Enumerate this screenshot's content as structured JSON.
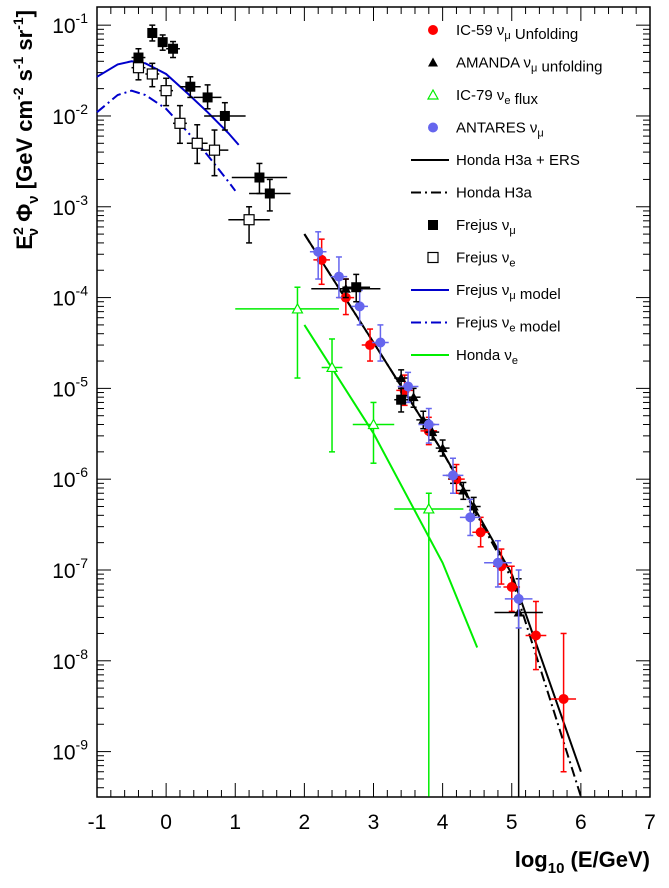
{
  "chart_data": {
    "type": "scatter",
    "xlabel": "log10 (E/GeV)",
    "ylabel": "E2ν Φν [GeV cm-2 s-1 sr-1]",
    "xlim": [
      -1,
      7
    ],
    "ylim_log10": [
      -9.5,
      -0.8
    ],
    "x_ticks": [
      "-1",
      "0",
      "1",
      "2",
      "3",
      "4",
      "5",
      "6",
      "7"
    ],
    "y_ticks": [
      {
        "exp": -9,
        "base": "10",
        "sup": "-9"
      },
      {
        "exp": -8,
        "base": "10",
        "sup": "-8"
      },
      {
        "exp": -7,
        "base": "10",
        "sup": "-7"
      },
      {
        "exp": -6,
        "base": "10",
        "sup": "-6"
      },
      {
        "exp": -5,
        "base": "10",
        "sup": "-5"
      },
      {
        "exp": -4,
        "base": "10",
        "sup": "-4"
      },
      {
        "exp": -3,
        "base": "10",
        "sup": "-3"
      },
      {
        "exp": -2,
        "base": "10",
        "sup": "-2"
      },
      {
        "exp": -1,
        "base": "10",
        "sup": "-1"
      }
    ],
    "legend_position": "top-right",
    "legend": [
      {
        "label": "IC-59 νμ Unfolding",
        "series": "ic59"
      },
      {
        "label": "AMANDA νμ unfolding",
        "series": "amanda"
      },
      {
        "label": "IC-79 νe flux",
        "series": "ic79"
      },
      {
        "label": "ANTARES νμ",
        "series": "antares"
      },
      {
        "label": "Honda H3a + ERS",
        "series": "honda_ers"
      },
      {
        "label": "Honda H3a",
        "series": "honda_h3a"
      },
      {
        "label": "Frejus νμ",
        "series": "frejus_mu"
      },
      {
        "label": "Frejus νe",
        "series": "frejus_e"
      },
      {
        "label": "Frejus νμ model",
        "series": "frejus_mu_model"
      },
      {
        "label": "Frejus νe model",
        "series": "frejus_e_model"
      },
      {
        "label": "Honda νe",
        "series": "honda_nue"
      }
    ],
    "series": [
      {
        "key": "ic59",
        "name": "IC-59 νμ Unfolding",
        "color": "#ff0000",
        "marker": "circle",
        "points": [
          {
            "x": 2.25,
            "y": 0.00026,
            "xerr": 0.12,
            "ylo": 0.00014,
            "yhi": 0.00044
          },
          {
            "x": 2.6,
            "y": 0.0001,
            "xerr": 0.12,
            "ylo": 6.5e-05,
            "yhi": 0.00016
          },
          {
            "x": 2.95,
            "y": 3e-05,
            "xerr": 0.12,
            "ylo": 2e-05,
            "yhi": 4.5e-05
          },
          {
            "x": 3.45,
            "y": 9.5e-06,
            "xerr": 0.12,
            "ylo": 6.5e-06,
            "yhi": 1.4e-05
          },
          {
            "x": 3.8,
            "y": 3.4e-06,
            "xerr": 0.12,
            "ylo": 2.4e-06,
            "yhi": 4.8e-06
          },
          {
            "x": 4.2,
            "y": 1e-06,
            "xerr": 0.12,
            "ylo": 7e-07,
            "yhi": 1.45e-06
          },
          {
            "x": 4.55,
            "y": 2.6e-07,
            "xerr": 0.12,
            "ylo": 1.8e-07,
            "yhi": 3.8e-07
          },
          {
            "x": 4.85,
            "y": 1.1e-07,
            "xerr": 0.12,
            "ylo": 7e-08,
            "yhi": 1.7e-07
          },
          {
            "x": 5.0,
            "y": 6.5e-08,
            "xerr": 0.12,
            "ylo": 3.5e-08,
            "yhi": 1.1e-07
          },
          {
            "x": 5.35,
            "y": 1.9e-08,
            "xerr": 0.15,
            "ylo": 8e-09,
            "yhi": 4.5e-08
          },
          {
            "x": 5.75,
            "y": 3.8e-09,
            "xerr": 0.18,
            "ylo": 6e-10,
            "yhi": 2e-08
          }
        ]
      },
      {
        "key": "amanda",
        "name": "AMANDA νμ unfolding",
        "color": "#000000",
        "marker": "triangle",
        "points": [
          {
            "x": 2.6,
            "y": 0.000125,
            "xerr": 0.5,
            "ylo": 0.0001,
            "yhi": 0.00016
          },
          {
            "x": 3.4,
            "y": 1.3e-05,
            "xerr": 0.1,
            "ylo": 1e-05,
            "yhi": 1.6e-05
          },
          {
            "x": 3.58,
            "y": 8e-06,
            "xerr": 0.1,
            "ylo": 6.2e-06,
            "yhi": 1e-05
          },
          {
            "x": 3.72,
            "y": 4.5e-06,
            "xerr": 0.1,
            "ylo": 3.6e-06,
            "yhi": 5.6e-06
          },
          {
            "x": 3.85,
            "y": 3.3e-06,
            "xerr": 0.1,
            "ylo": 2.7e-06,
            "yhi": 4e-06
          },
          {
            "x": 4.0,
            "y": 2.2e-06,
            "xerr": 0.1,
            "ylo": 1.8e-06,
            "yhi": 2.7e-06
          },
          {
            "x": 4.15,
            "y": 1.1e-06,
            "xerr": 0.1,
            "ylo": 9e-07,
            "yhi": 1.35e-06
          },
          {
            "x": 4.3,
            "y": 7.5e-07,
            "xerr": 0.1,
            "ylo": 6e-07,
            "yhi": 9.2e-07
          },
          {
            "x": 4.45,
            "y": 5e-07,
            "xerr": 0.1,
            "ylo": 4e-07,
            "yhi": 6.3e-07
          },
          {
            "x": 5.1,
            "y": 3.4e-08,
            "xerr": 0.35,
            "ylo": 3.2e-10,
            "yhi": 8e-08
          }
        ]
      },
      {
        "key": "ic79",
        "name": "IC-79 νe flux",
        "color": "#00ee00",
        "marker": "triangle-open",
        "points": [
          {
            "x": 1.9,
            "y": 7.5e-05,
            "xerr_lo": 0.9,
            "xerr_hi": 0.6,
            "ylo": 1.3e-05,
            "yhi": 0.00013
          },
          {
            "x": 2.4,
            "y": 1.7e-05,
            "xerr": 0.15,
            "ylo": 2e-06,
            "yhi": 3.5e-05
          },
          {
            "x": 3.0,
            "y": 4e-06,
            "xerr": 0.3,
            "ylo": 1.5e-06,
            "yhi": 7e-06
          },
          {
            "x": 3.8,
            "y": 4.7e-07,
            "xerr": 0.5,
            "ylo": 3.2e-10,
            "yhi": 7e-07
          }
        ]
      },
      {
        "key": "antares",
        "name": "ANTARES νμ",
        "color": "#6666ee",
        "marker": "circle",
        "points": [
          {
            "x": 2.2,
            "y": 0.00032,
            "xerr": 0.12,
            "ylo": 0.00016,
            "yhi": 0.00053
          },
          {
            "x": 2.5,
            "y": 0.00017,
            "xerr": 0.12,
            "ylo": 0.0001,
            "yhi": 0.00028
          },
          {
            "x": 2.8,
            "y": 8e-05,
            "xerr": 0.12,
            "ylo": 5e-05,
            "yhi": 0.00012
          },
          {
            "x": 3.1,
            "y": 3.2e-05,
            "xerr": 0.12,
            "ylo": 2e-05,
            "yhi": 5e-05
          },
          {
            "x": 3.5,
            "y": 1.05e-05,
            "xerr": 0.15,
            "ylo": 7e-06,
            "yhi": 1.5e-05
          },
          {
            "x": 3.8,
            "y": 4e-06,
            "xerr": 0.15,
            "ylo": 2.5e-06,
            "yhi": 6e-06
          },
          {
            "x": 4.15,
            "y": 1.1e-06,
            "xerr": 0.15,
            "ylo": 7e-07,
            "yhi": 1.7e-06
          },
          {
            "x": 4.4,
            "y": 3.8e-07,
            "xerr": 0.15,
            "ylo": 2.4e-07,
            "yhi": 6e-07
          },
          {
            "x": 4.8,
            "y": 1.2e-07,
            "xerr": 0.2,
            "ylo": 6.5e-08,
            "yhi": 2.1e-07
          },
          {
            "x": 5.1,
            "y": 4.8e-08,
            "xerr": 0.2,
            "ylo": 2.3e-08,
            "yhi": 1e-07
          }
        ]
      },
      {
        "key": "frejus_mu",
        "name": "Frejus νμ",
        "color": "#000000",
        "marker": "square",
        "points": [
          {
            "x": -0.4,
            "y": 0.044,
            "xerr": 0.1,
            "ylo": 0.034,
            "yhi": 0.055
          },
          {
            "x": -0.2,
            "y": 0.082,
            "xerr": 0.05,
            "ylo": 0.067,
            "yhi": 0.1
          },
          {
            "x": -0.05,
            "y": 0.065,
            "xerr": 0.05,
            "ylo": 0.053,
            "yhi": 0.078
          },
          {
            "x": 0.1,
            "y": 0.055,
            "xerr": 0.1,
            "ylo": 0.044,
            "yhi": 0.066
          },
          {
            "x": 0.35,
            "y": 0.021,
            "xerr": 0.15,
            "ylo": 0.016,
            "yhi": 0.027
          },
          {
            "x": 0.6,
            "y": 0.016,
            "xerr": 0.2,
            "ylo": 0.012,
            "yhi": 0.022
          },
          {
            "x": 0.85,
            "y": 0.01,
            "xerr": 0.3,
            "ylo": 0.007,
            "yhi": 0.014
          },
          {
            "x": 1.35,
            "y": 0.0021,
            "xerr": 0.4,
            "ylo": 0.0014,
            "yhi": 0.003
          },
          {
            "x": 1.5,
            "y": 0.0014,
            "xerr": 0.3,
            "ylo": 0.0009,
            "yhi": 0.002
          },
          {
            "x": 2.75,
            "y": 0.00013,
            "xerr": 0.2,
            "ylo": 9e-05,
            "yhi": 0.00018
          },
          {
            "x": 3.4,
            "y": 7.5e-06,
            "xerr": 0.1,
            "ylo": 5.5e-06,
            "yhi": 1e-05
          }
        ]
      },
      {
        "key": "frejus_e",
        "name": "Frejus νe",
        "color": "#000000",
        "marker": "square-open",
        "points": [
          {
            "x": -0.4,
            "y": 0.034,
            "xerr": 0.1,
            "ylo": 0.025,
            "yhi": 0.045
          },
          {
            "x": -0.2,
            "y": 0.029,
            "xerr": 0.1,
            "ylo": 0.021,
            "yhi": 0.038
          },
          {
            "x": 0.0,
            "y": 0.019,
            "xerr": 0.1,
            "ylo": 0.013,
            "yhi": 0.026
          },
          {
            "x": 0.2,
            "y": 0.0083,
            "xerr": 0.1,
            "ylo": 0.005,
            "yhi": 0.013
          },
          {
            "x": 0.45,
            "y": 0.005,
            "xerr": 0.15,
            "ylo": 0.003,
            "yhi": 0.008
          },
          {
            "x": 0.7,
            "y": 0.0042,
            "xerr": 0.2,
            "ylo": 0.0022,
            "yhi": 0.007
          },
          {
            "x": 1.2,
            "y": 0.00072,
            "xerr": 0.3,
            "ylo": 0.0004,
            "yhi": 0.001
          }
        ]
      }
    ],
    "curves": [
      {
        "key": "honda_ers",
        "name": "Honda H3a + ERS",
        "color": "#000000",
        "dash": "solid",
        "x": [
          2.0,
          3.0,
          4.0,
          5.0,
          6.0
        ],
        "y": [
          0.0005,
          3.2e-05,
          2e-06,
          9e-08,
          6e-10
        ]
      },
      {
        "key": "honda_h3a",
        "name": "Honda H3a",
        "color": "#000000",
        "dash": "dashdot",
        "x": [
          2.0,
          3.0,
          4.0,
          5.0,
          6.0
        ],
        "y": [
          0.0005,
          3.2e-05,
          2e-06,
          8e-08,
          3.2e-10
        ]
      },
      {
        "key": "frejus_mu_model",
        "name": "Frejus νμ model",
        "color": "#0000cc",
        "dash": "solid",
        "x": [
          -1.0,
          -0.7,
          -0.5,
          -0.3,
          0.0,
          0.3,
          0.6,
          0.9,
          1.05
        ],
        "y": [
          0.027,
          0.037,
          0.04,
          0.038,
          0.029,
          0.018,
          0.011,
          0.0065,
          0.0048
        ]
      },
      {
        "key": "frejus_e_model",
        "name": "Frejus νe model",
        "color": "#0000cc",
        "dash": "dashdot",
        "x": [
          -1.0,
          -0.7,
          -0.5,
          -0.3,
          0.0,
          0.3,
          0.6,
          0.9,
          1.0
        ],
        "y": [
          0.011,
          0.017,
          0.019,
          0.017,
          0.012,
          0.0068,
          0.0037,
          0.0019,
          0.0015
        ]
      },
      {
        "key": "honda_nue",
        "name": "Honda νe",
        "color": "#00ee00",
        "dash": "solid",
        "x": [
          2.0,
          3.0,
          4.0,
          4.5
        ],
        "y": [
          5e-05,
          3.2e-06,
          1.2e-07,
          1.4e-08
        ]
      }
    ]
  }
}
